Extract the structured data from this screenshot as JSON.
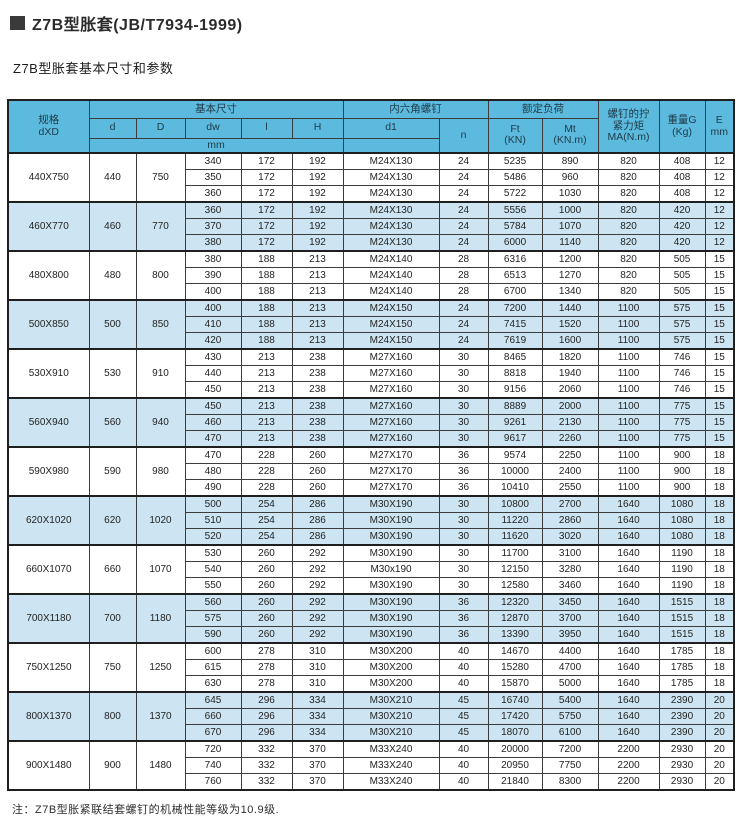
{
  "colors": {
    "header_bg": "#5cbade",
    "row_highlight_bg": "#cde5f2",
    "row_bg": "#ffffff",
    "border_dark": "#1f1f1f",
    "border_inner": "#3c3c3c",
    "title_square": "#3a3a3a"
  },
  "page": {
    "title": "Z7B型胀套(JB/T7934-1999)",
    "subtitle": "Z7B型胀套基本尺寸和参数",
    "footnote": "注：Z7B型胀紧联结套螺钉的机械性能等级为10.9级."
  },
  "table": {
    "headers": {
      "spec_line1": "规格",
      "spec_line2": "dXD",
      "basic_dims": "基本尺寸",
      "d": "d",
      "D": "D",
      "dw": "dw",
      "l": "l",
      "H": "H",
      "mm": "mm",
      "hex_screw": "内六角螺钉",
      "d1": "d1",
      "n": "n",
      "rated_load": "额定负荷",
      "ft_line1": "Ft",
      "ft_line2": "(KN)",
      "mt_line1": "Mt",
      "mt_line2": "(KN.m)",
      "torque_line1": "螺钉的拧",
      "torque_line2": "紧力矩",
      "torque_line3": "MA(N.m)",
      "weight_line1": "重量G",
      "weight_line2": "(Kg)",
      "e_line1": "E",
      "e_line2": "mm"
    },
    "groups": [
      {
        "spec": "440X750",
        "d": "440",
        "D": "750",
        "highlight": false,
        "rows": [
          [
            "340",
            "172",
            "192",
            "M24X130",
            "24",
            "5235",
            "890",
            "820",
            "408",
            "12"
          ],
          [
            "350",
            "172",
            "192",
            "M24X130",
            "24",
            "5486",
            "960",
            "820",
            "408",
            "12"
          ],
          [
            "360",
            "172",
            "192",
            "M24X130",
            "24",
            "5722",
            "1030",
            "820",
            "408",
            "12"
          ]
        ]
      },
      {
        "spec": "460X770",
        "d": "460",
        "D": "770",
        "highlight": true,
        "rows": [
          [
            "360",
            "172",
            "192",
            "M24X130",
            "24",
            "5556",
            "1000",
            "820",
            "420",
            "12"
          ],
          [
            "370",
            "172",
            "192",
            "M24X130",
            "24",
            "5784",
            "1070",
            "820",
            "420",
            "12"
          ],
          [
            "380",
            "172",
            "192",
            "M24X130",
            "24",
            "6000",
            "1140",
            "820",
            "420",
            "12"
          ]
        ]
      },
      {
        "spec": "480X800",
        "d": "480",
        "D": "800",
        "highlight": false,
        "rows": [
          [
            "380",
            "188",
            "213",
            "M24X140",
            "28",
            "6316",
            "1200",
            "820",
            "505",
            "15"
          ],
          [
            "390",
            "188",
            "213",
            "M24X140",
            "28",
            "6513",
            "1270",
            "820",
            "505",
            "15"
          ],
          [
            "400",
            "188",
            "213",
            "M24X140",
            "28",
            "6700",
            "1340",
            "820",
            "505",
            "15"
          ]
        ]
      },
      {
        "spec": "500X850",
        "d": "500",
        "D": "850",
        "highlight": true,
        "rows": [
          [
            "400",
            "188",
            "213",
            "M24X150",
            "24",
            "7200",
            "1440",
            "1100",
            "575",
            "15"
          ],
          [
            "410",
            "188",
            "213",
            "M24X150",
            "24",
            "7415",
            "1520",
            "1100",
            "575",
            "15"
          ],
          [
            "420",
            "188",
            "213",
            "M24X150",
            "24",
            "7619",
            "1600",
            "1100",
            "575",
            "15"
          ]
        ]
      },
      {
        "spec": "530X910",
        "d": "530",
        "D": "910",
        "highlight": false,
        "rows": [
          [
            "430",
            "213",
            "238",
            "M27X160",
            "30",
            "8465",
            "1820",
            "1100",
            "746",
            "15"
          ],
          [
            "440",
            "213",
            "238",
            "M27X160",
            "30",
            "8818",
            "1940",
            "1100",
            "746",
            "15"
          ],
          [
            "450",
            "213",
            "238",
            "M27X160",
            "30",
            "9156",
            "2060",
            "1100",
            "746",
            "15"
          ]
        ]
      },
      {
        "spec": "560X940",
        "d": "560",
        "D": "940",
        "highlight": true,
        "rows": [
          [
            "450",
            "213",
            "238",
            "M27X160",
            "30",
            "8889",
            "2000",
            "1100",
            "775",
            "15"
          ],
          [
            "460",
            "213",
            "238",
            "M27X160",
            "30",
            "9261",
            "2130",
            "1100",
            "775",
            "15"
          ],
          [
            "470",
            "213",
            "238",
            "M27X160",
            "30",
            "9617",
            "2260",
            "1100",
            "775",
            "15"
          ]
        ]
      },
      {
        "spec": "590X980",
        "d": "590",
        "D": "980",
        "highlight": false,
        "rows": [
          [
            "470",
            "228",
            "260",
            "M27X170",
            "36",
            "9574",
            "2250",
            "1100",
            "900",
            "18"
          ],
          [
            "480",
            "228",
            "260",
            "M27X170",
            "36",
            "10000",
            "2400",
            "1100",
            "900",
            "18"
          ],
          [
            "490",
            "228",
            "260",
            "M27X170",
            "36",
            "10410",
            "2550",
            "1100",
            "900",
            "18"
          ]
        ]
      },
      {
        "spec": "620X1020",
        "d": "620",
        "D": "1020",
        "highlight": true,
        "rows": [
          [
            "500",
            "254",
            "286",
            "M30X190",
            "30",
            "10800",
            "2700",
            "1640",
            "1080",
            "18"
          ],
          [
            "510",
            "254",
            "286",
            "M30X190",
            "30",
            "11220",
            "2860",
            "1640",
            "1080",
            "18"
          ],
          [
            "520",
            "254",
            "286",
            "M30X190",
            "30",
            "11620",
            "3020",
            "1640",
            "1080",
            "18"
          ]
        ]
      },
      {
        "spec": "660X1070",
        "d": "660",
        "D": "1070",
        "highlight": false,
        "rows": [
          [
            "530",
            "260",
            "292",
            "M30X190",
            "30",
            "11700",
            "3100",
            "1640",
            "1190",
            "18"
          ],
          [
            "540",
            "260",
            "292",
            "M30x190",
            "30",
            "12150",
            "3280",
            "1640",
            "1190",
            "18"
          ],
          [
            "550",
            "260",
            "292",
            "M30X190",
            "30",
            "12580",
            "3460",
            "1640",
            "1190",
            "18"
          ]
        ]
      },
      {
        "spec": "700X1180",
        "d": "700",
        "D": "1180",
        "highlight": true,
        "rows": [
          [
            "560",
            "260",
            "292",
            "M30X190",
            "36",
            "12320",
            "3450",
            "1640",
            "1515",
            "18"
          ],
          [
            "575",
            "260",
            "292",
            "M30X190",
            "36",
            "12870",
            "3700",
            "1640",
            "1515",
            "18"
          ],
          [
            "590",
            "260",
            "292",
            "M30X190",
            "36",
            "13390",
            "3950",
            "1640",
            "1515",
            "18"
          ]
        ]
      },
      {
        "spec": "750X1250",
        "d": "750",
        "D": "1250",
        "highlight": false,
        "rows": [
          [
            "600",
            "278",
            "310",
            "M30X200",
            "40",
            "14670",
            "4400",
            "1640",
            "1785",
            "18"
          ],
          [
            "615",
            "278",
            "310",
            "M30X200",
            "40",
            "15280",
            "4700",
            "1640",
            "1785",
            "18"
          ],
          [
            "630",
            "278",
            "310",
            "M30X200",
            "40",
            "15870",
            "5000",
            "1640",
            "1785",
            "18"
          ]
        ]
      },
      {
        "spec": "800X1370",
        "d": "800",
        "D": "1370",
        "highlight": true,
        "rows": [
          [
            "645",
            "296",
            "334",
            "M30X210",
            "45",
            "16740",
            "5400",
            "1640",
            "2390",
            "20"
          ],
          [
            "660",
            "296",
            "334",
            "M30X210",
            "45",
            "17420",
            "5750",
            "1640",
            "2390",
            "20"
          ],
          [
            "670",
            "296",
            "334",
            "M30X210",
            "45",
            "18070",
            "6100",
            "1640",
            "2390",
            "20"
          ]
        ]
      },
      {
        "spec": "900X1480",
        "d": "900",
        "D": "1480",
        "highlight": false,
        "rows": [
          [
            "720",
            "332",
            "370",
            "M33X240",
            "40",
            "20000",
            "7200",
            "2200",
            "2930",
            "20"
          ],
          [
            "740",
            "332",
            "370",
            "M33X240",
            "40",
            "20950",
            "7750",
            "2200",
            "2930",
            "20"
          ],
          [
            "760",
            "332",
            "370",
            "M33X240",
            "40",
            "21840",
            "8300",
            "2200",
            "2930",
            "20"
          ]
        ]
      }
    ]
  }
}
